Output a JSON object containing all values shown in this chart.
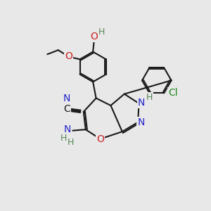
{
  "bg": "#e8e8e8",
  "bond_color": "#1a1a1a",
  "bw": 1.5,
  "dbo": 0.08,
  "colors": {
    "N": "#2222cc",
    "O": "#cc2222",
    "Cl": "#228822",
    "H": "#558855",
    "C": "#1a1a1a"
  }
}
